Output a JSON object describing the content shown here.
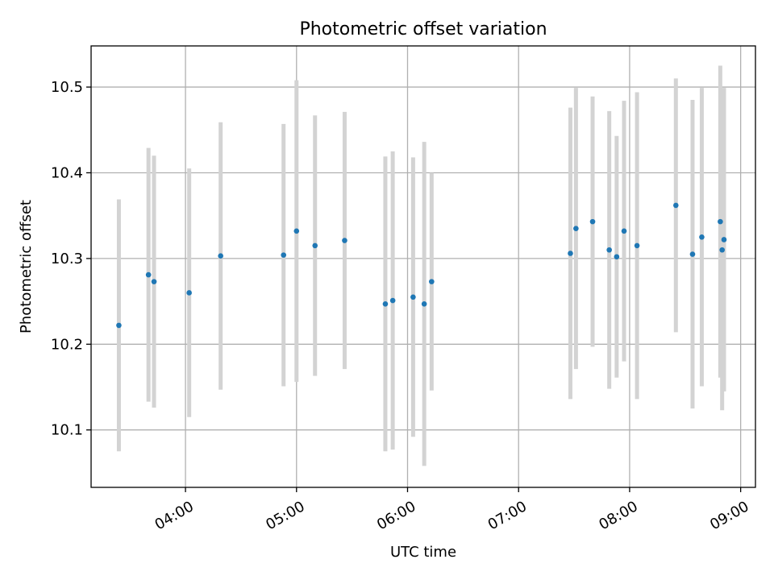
{
  "chart_data": {
    "type": "scatter",
    "title": "Photometric offset variation",
    "xlabel": "UTC time",
    "ylabel": "Photometric offset",
    "x_unit": "UTC hh:mm",
    "xlim": [
      "03:09",
      "09:08"
    ],
    "ylim": [
      10.033,
      10.548
    ],
    "x_ticks": [
      "04:00",
      "05:00",
      "06:00",
      "07:00",
      "08:00",
      "09:00"
    ],
    "y_ticks": [
      10.1,
      10.2,
      10.3,
      10.4,
      10.5
    ],
    "y_tick_labels": [
      "10.1",
      "10.2",
      "10.3",
      "10.4",
      "10.5"
    ],
    "grid": true,
    "legend": false,
    "colors": {
      "point": "#1f77b4",
      "errorbar": "#d3d3d3"
    },
    "points": [
      {
        "x": "03:24",
        "y": 10.222,
        "yerr": 0.147
      },
      {
        "x": "03:40",
        "y": 10.281,
        "yerr": 0.148
      },
      {
        "x": "03:43",
        "y": 10.273,
        "yerr": 0.147
      },
      {
        "x": "04:02",
        "y": 10.26,
        "yerr": 0.145
      },
      {
        "x": "04:19",
        "y": 10.303,
        "yerr": 0.156
      },
      {
        "x": "04:53",
        "y": 10.304,
        "yerr": 0.153
      },
      {
        "x": "05:00",
        "y": 10.332,
        "yerr": 0.176
      },
      {
        "x": "05:10",
        "y": 10.315,
        "yerr": 0.152
      },
      {
        "x": "05:26",
        "y": 10.321,
        "yerr": 0.15
      },
      {
        "x": "05:48",
        "y": 10.247,
        "yerr": 0.172
      },
      {
        "x": "05:52",
        "y": 10.251,
        "yerr": 0.174
      },
      {
        "x": "06:03",
        "y": 10.255,
        "yerr": 0.163
      },
      {
        "x": "06:09",
        "y": 10.247,
        "yerr": 0.189
      },
      {
        "x": "06:13",
        "y": 10.273,
        "yerr": 0.127
      },
      {
        "x": "07:28",
        "y": 10.306,
        "yerr": 0.17
      },
      {
        "x": "07:31",
        "y": 10.335,
        "yerr": 0.164
      },
      {
        "x": "07:40",
        "y": 10.343,
        "yerr": 0.146
      },
      {
        "x": "07:49",
        "y": 10.31,
        "yerr": 0.162
      },
      {
        "x": "07:53",
        "y": 10.302,
        "yerr": 0.141
      },
      {
        "x": "07:57",
        "y": 10.332,
        "yerr": 0.152
      },
      {
        "x": "08:04",
        "y": 10.315,
        "yerr": 0.179
      },
      {
        "x": "08:25",
        "y": 10.362,
        "yerr": 0.148
      },
      {
        "x": "08:34",
        "y": 10.305,
        "yerr": 0.18
      },
      {
        "x": "08:39",
        "y": 10.325,
        "yerr": 0.174
      },
      {
        "x": "08:49",
        "y": 10.343,
        "yerr": 0.182
      },
      {
        "x": "08:50",
        "y": 10.31,
        "yerr": 0.187
      },
      {
        "x": "08:51",
        "y": 10.322,
        "yerr": 0.177
      }
    ]
  }
}
